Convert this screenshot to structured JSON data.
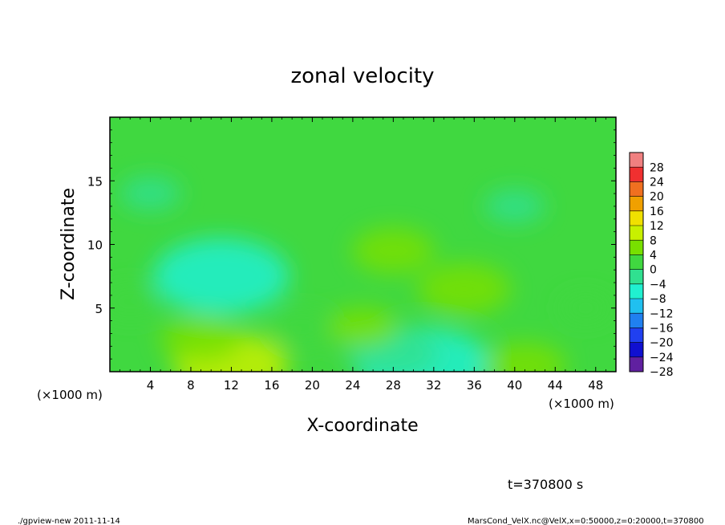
{
  "chart_data": {
    "type": "heatmap",
    "title": "zonal velocity",
    "xlabel": "X-coordinate",
    "ylabel": "Z-coordinate",
    "x_unit_label": "(×1000 m)",
    "y_unit_label": "(×1000 m)",
    "xlim": [
      0,
      50
    ],
    "ylim": [
      0,
      20
    ],
    "x_ticks": [
      4,
      8,
      12,
      16,
      20,
      24,
      28,
      32,
      36,
      40,
      44,
      48
    ],
    "x_tick_labels": [
      "4",
      "8",
      "12",
      "16",
      "20",
      "24",
      "28",
      "32",
      "36",
      "40",
      "44",
      "48"
    ],
    "y_ticks": [
      5,
      10,
      15
    ],
    "y_tick_labels": [
      "5",
      "10",
      "15"
    ],
    "colorbar": {
      "labels": [
        "28",
        "24",
        "20",
        "16",
        "12",
        "8",
        "4",
        "0",
        "−4",
        "−8",
        "−12",
        "−16",
        "−20",
        "−24",
        "−28"
      ],
      "levels": [
        30,
        28,
        26,
        24,
        22,
        20,
        18,
        16,
        14,
        12,
        10,
        8,
        6,
        4,
        2,
        0,
        -2,
        -4,
        -6,
        -8,
        -10,
        -12,
        -14,
        -16,
        -18,
        -20,
        -22,
        -24,
        -26,
        -28,
        -30
      ],
      "colors": [
        "#f08080",
        "#f03030",
        "#f07020",
        "#f0a000",
        "#f0e000",
        "#c8f000",
        "#78e000",
        "#40d840",
        "#30e090",
        "#20f0d0",
        "#20c0f0",
        "#2080f0",
        "#2040f0",
        "#1010d0",
        "#6020a0"
      ]
    },
    "field_features": [
      {
        "description": "background",
        "x": 25,
        "z": 10,
        "value": 0
      },
      {
        "x": 11,
        "z": 7.5,
        "value": -9
      },
      {
        "x": 4,
        "z": 14,
        "value": -2
      },
      {
        "x": 12,
        "z": 0.5,
        "value": 7
      },
      {
        "x": 9,
        "z": 2.5,
        "value": 4
      },
      {
        "x": 31,
        "z": 0.5,
        "value": -9
      },
      {
        "x": 28,
        "z": 1.5,
        "value": -5
      },
      {
        "x": 35,
        "z": 6.5,
        "value": 5
      },
      {
        "x": 28,
        "z": 9.5,
        "value": 4
      },
      {
        "x": 25,
        "z": 3.5,
        "value": 3
      },
      {
        "x": 19,
        "z": 3.5,
        "value": 2
      },
      {
        "x": 41,
        "z": 0.5,
        "value": 4
      },
      {
        "x": 47,
        "z": 5,
        "value": 1
      },
      {
        "x": 2,
        "z": 5.5,
        "value": 2
      },
      {
        "x": 40,
        "z": 13,
        "value": -2
      }
    ]
  },
  "annotations": {
    "time": "t=370800 s",
    "footer_left": "./gpview-new  2011-11-14",
    "footer_right": "MarsCond_VelX.nc@VelX,x=0:50000,z=0:20000,t=370800"
  }
}
